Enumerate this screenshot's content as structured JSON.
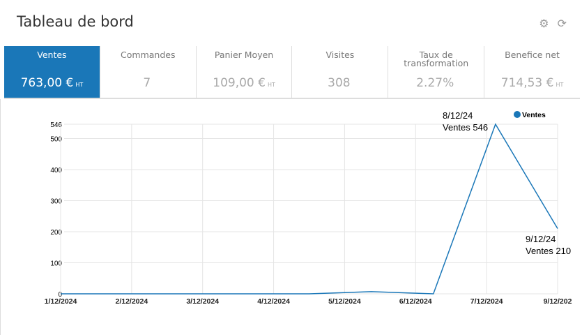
{
  "header": {
    "title": "Tableau de bord",
    "icons": [
      "gear-icon",
      "refresh-icon"
    ]
  },
  "kpis": [
    {
      "label": "Ventes",
      "value": "763,00 €",
      "unit": "HT",
      "active": true
    },
    {
      "label": "Commandes",
      "value": "7",
      "unit": ""
    },
    {
      "label": "Panier Moyen",
      "value": "109,00 €",
      "unit": "HT"
    },
    {
      "label": "Visites",
      "value": "308",
      "unit": ""
    },
    {
      "label": "Taux de transformation",
      "value": "2.27%",
      "unit": ""
    },
    {
      "label": "Benefice net",
      "value": "714,53 €",
      "unit": "HT"
    }
  ],
  "chart_data": {
    "type": "line",
    "x": [
      "1/12/24",
      "2/12/24",
      "3/12/24",
      "4/12/24",
      "5/12/24",
      "6/12/24",
      "7/12/24",
      "8/12/24",
      "9/12/24"
    ],
    "series": [
      {
        "name": "Ventes",
        "values": [
          0,
          0,
          0,
          0,
          0,
          7,
          0,
          546,
          210
        ],
        "color": "#1a77b8"
      }
    ],
    "x_tick_labels": [
      "1/12/2024",
      "2/12/2024",
      "3/12/2024",
      "4/12/2024",
      "5/12/2024",
      "6/12/2024",
      "7/12/2024",
      "9/12/202"
    ],
    "y_ticks": [
      0,
      100,
      200,
      300,
      400,
      500,
      546
    ],
    "ylim": [
      0,
      546
    ],
    "grid": true,
    "legend": "top-right",
    "annotations": [
      {
        "lines": [
          "8/12/24",
          "Ventes 546"
        ]
      },
      {
        "lines": [
          "9/12/24",
          "Ventes 210"
        ]
      }
    ]
  }
}
